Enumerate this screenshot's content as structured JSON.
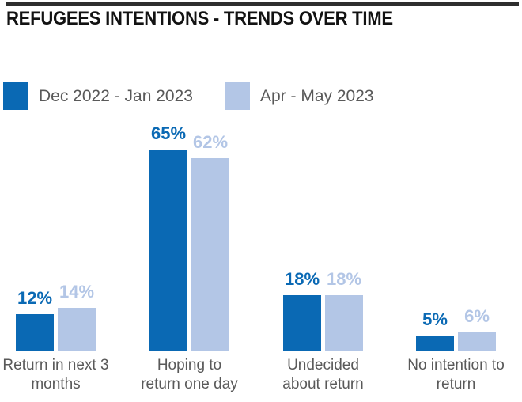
{
  "header": {
    "title": "REFUGEES INTENTIONS - TRENDS OVER TIME"
  },
  "chart_data": {
    "type": "bar",
    "title": "REFUGEES INTENTIONS - TRENDS OVER TIME",
    "categories": [
      "Return in next 3 months",
      "Hoping to return one day",
      "Undecided about return",
      "No intention to return"
    ],
    "category_lines": [
      [
        "Return in next 3",
        "months"
      ],
      [
        "Hoping to",
        "return one day"
      ],
      [
        "Undecided",
        "about return"
      ],
      [
        "No intention to",
        "return"
      ]
    ],
    "series": [
      {
        "name": "Dec 2022 - Jan 2023",
        "color": "#0a69b4",
        "values": [
          12,
          65,
          18,
          5
        ]
      },
      {
        "name": "Apr - May 2023",
        "color": "#b3c6e6",
        "values": [
          14,
          62,
          18,
          6
        ]
      }
    ],
    "value_suffix": "%",
    "value_labels_shown": true,
    "legend_position": "top-left",
    "axes_visible": false,
    "gridlines": false,
    "ylim": [
      0,
      70
    ],
    "category_label_color": "#595959",
    "title_rule_color": "#2e2e2e"
  }
}
